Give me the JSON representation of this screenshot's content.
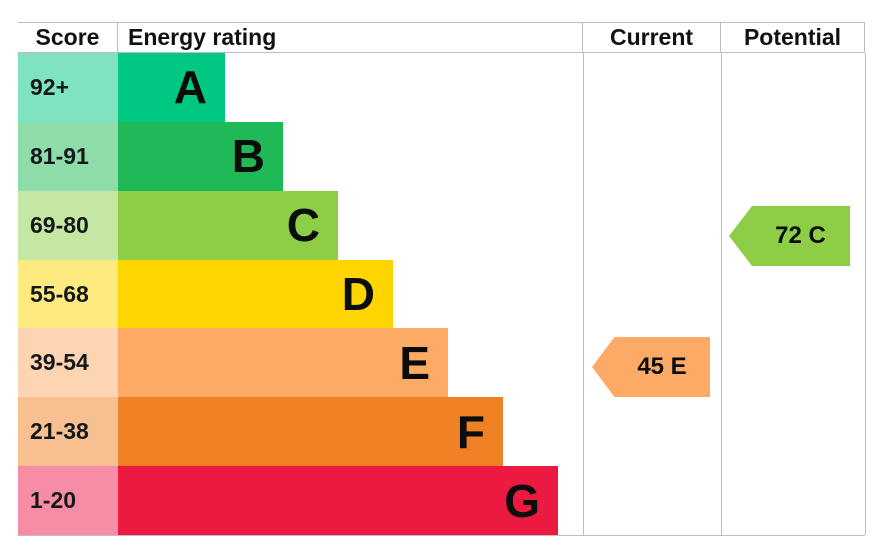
{
  "header": {
    "score": "Score",
    "rating": "Energy rating",
    "current": "Current",
    "potential": "Potential"
  },
  "bands": [
    {
      "letter": "A",
      "score": "92+",
      "color": "#00c781",
      "score_cell_color": "#80e3c0"
    },
    {
      "letter": "B",
      "score": "81-91",
      "color": "#1fb958",
      "score_cell_color": "#8fdcab"
    },
    {
      "letter": "C",
      "score": "69-80",
      "color": "#8dce46",
      "score_cell_color": "#c6e7a3"
    },
    {
      "letter": "D",
      "score": "55-68",
      "color": "#ffd500",
      "score_cell_color": "#ffea80"
    },
    {
      "letter": "E",
      "score": "39-54",
      "color": "#fcaa65",
      "score_cell_color": "#fed5b2"
    },
    {
      "letter": "F",
      "score": "21-38",
      "color": "#ef8023",
      "score_cell_color": "#f7c091"
    },
    {
      "letter": "G",
      "score": "1-20",
      "color": "#ec1a41",
      "score_cell_color": "#f78da4"
    }
  ],
  "markers": {
    "current": {
      "label": "45 E",
      "color": "#fcaa65"
    },
    "potential": {
      "label": "72 C",
      "color": "#8dce46"
    }
  },
  "chart_data": {
    "type": "bar",
    "title": "Energy rating (EPC) chart",
    "columns": [
      "Score",
      "Energy rating",
      "Current",
      "Potential"
    ],
    "categories": [
      "A",
      "B",
      "C",
      "D",
      "E",
      "F",
      "G"
    ],
    "score_ranges": [
      "92+",
      "81-91",
      "69-80",
      "55-68",
      "39-54",
      "21-38",
      "1-20"
    ],
    "band_colors": [
      "#00c781",
      "#1fb958",
      "#8dce46",
      "#ffd500",
      "#fcaa65",
      "#ef8023",
      "#ec1a41"
    ],
    "current": {
      "score": 45,
      "band": "E"
    },
    "potential": {
      "score": 72,
      "band": "C"
    },
    "legend_position": "none",
    "grid": false
  }
}
